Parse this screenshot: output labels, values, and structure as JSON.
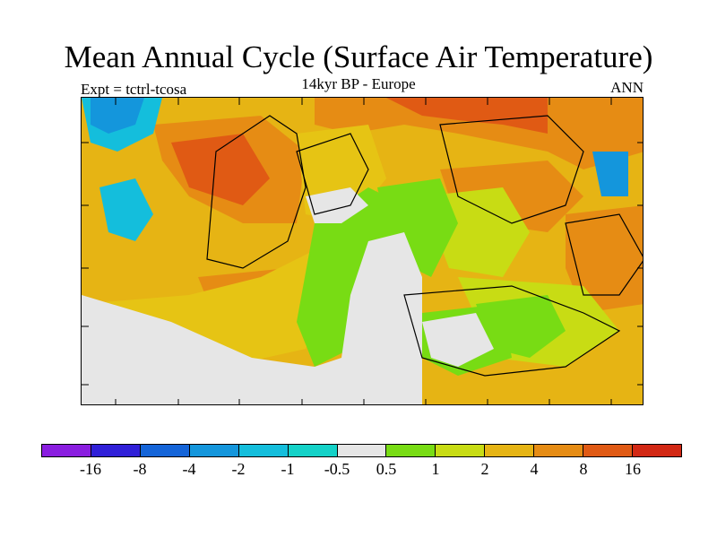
{
  "title": "Mean Annual Cycle (Surface Air Temperature)",
  "subtitle": {
    "experiment": "Expt = tctrl-tcosa",
    "period": "14kyr BP - Europe",
    "season": "ANN"
  },
  "colorbar": {
    "colors": [
      "#8a1ee0",
      "#3020d8",
      "#1464d8",
      "#1496dc",
      "#14bedc",
      "#14d2c8",
      "#e6e6e6",
      "#78dc14",
      "#c8dc14",
      "#e6b414",
      "#e68c14",
      "#e05a14",
      "#d22814"
    ],
    "labels": [
      "-16",
      "-8",
      "-4",
      "-2",
      "-1",
      "-0.5",
      "0.5",
      "1",
      "2",
      "4",
      "8",
      "16"
    ]
  }
}
